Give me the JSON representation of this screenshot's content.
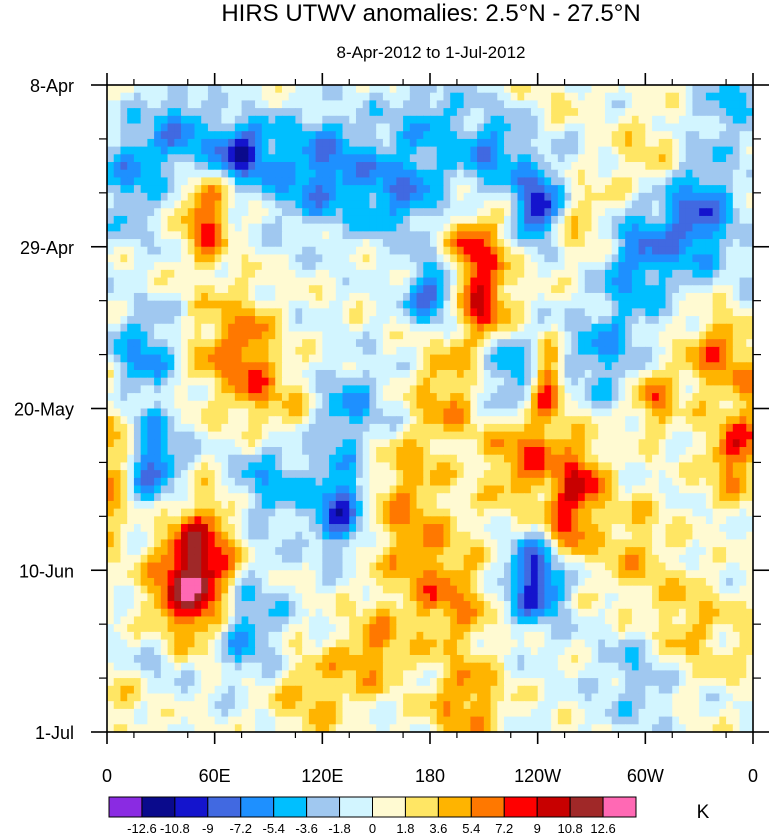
{
  "chart_data": {
    "type": "heatmap",
    "title": "HIRS UTWV anomalies: 2.5°N - 27.5°N",
    "subtitle": "8-Apr-2012 to 1-Jul-2012",
    "x_ticks": [
      "0",
      "60E",
      "120E",
      "180",
      "120W",
      "60W",
      "0"
    ],
    "x_range_deg": [
      0,
      360
    ],
    "y_ticks": [
      "8-Apr",
      "29-Apr",
      "20-May",
      "10-Jun",
      "1-Jul"
    ],
    "y_range_days": [
      0,
      84
    ],
    "colorbar": {
      "unit": "K",
      "levels": [
        "-12.6",
        "-10.8",
        "-9",
        "-7.2",
        "-5.4",
        "-3.6",
        "-1.8",
        "0",
        "1.8",
        "3.6",
        "5.4",
        "7.2",
        "9",
        "10.8",
        "12.6"
      ],
      "colors": [
        "#8a2be2",
        "#0a0a8c",
        "#1414cd",
        "#4169e1",
        "#1e90ff",
        "#00bfff",
        "#a0c8f0",
        "#d2f5ff",
        "#fffad2",
        "#ffe664",
        "#ffb400",
        "#ff7800",
        "#ff0000",
        "#c80000",
        "#a02828",
        "#ff69b4"
      ]
    },
    "features": [
      {
        "lon": 70,
        "day": 9,
        "value": -12,
        "wlon": 14,
        "wday": 3
      },
      {
        "lon": 40,
        "day": 6,
        "value": -6,
        "wlon": 12,
        "wday": 4
      },
      {
        "lon": 15,
        "day": 12,
        "value": -5,
        "wlon": 10,
        "wday": 5
      },
      {
        "lon": 120,
        "day": 11,
        "value": -7,
        "wlon": 22,
        "wday": 5
      },
      {
        "lon": 165,
        "day": 14,
        "value": -6,
        "wlon": 16,
        "wday": 4
      },
      {
        "lon": 180,
        "day": 4,
        "value": -4,
        "wlon": 14,
        "wday": 4
      },
      {
        "lon": 215,
        "day": 9,
        "value": -6,
        "wlon": 14,
        "wday": 4
      },
      {
        "lon": 240,
        "day": 16,
        "value": -11,
        "wlon": 8,
        "wday": 3
      },
      {
        "lon": 250,
        "day": 7,
        "value": -5,
        "wlon": 12,
        "wday": 4
      },
      {
        "lon": 295,
        "day": 21,
        "value": -7,
        "wlon": 16,
        "wday": 6
      },
      {
        "lon": 330,
        "day": 17,
        "value": -8,
        "wlon": 14,
        "wday": 5
      },
      {
        "lon": 345,
        "day": 3,
        "value": -4,
        "wlon": 12,
        "wday": 3
      },
      {
        "lon": 20,
        "day": 35,
        "value": -6,
        "wlon": 12,
        "wday": 4
      },
      {
        "lon": 135,
        "day": 42,
        "value": -5,
        "wlon": 16,
        "wday": 4
      },
      {
        "lon": 182,
        "day": 27,
        "value": -9,
        "wlon": 10,
        "wday": 3
      },
      {
        "lon": 225,
        "day": 38,
        "value": -6,
        "wlon": 12,
        "wday": 4
      },
      {
        "lon": 275,
        "day": 35,
        "value": -5,
        "wlon": 14,
        "wday": 4
      },
      {
        "lon": 25,
        "day": 49,
        "value": -8,
        "wlon": 12,
        "wday": 4
      },
      {
        "lon": 130,
        "day": 55,
        "value": -9,
        "wlon": 10,
        "wday": 4
      },
      {
        "lon": 90,
        "day": 51,
        "value": -5,
        "wlon": 16,
        "wday": 5
      },
      {
        "lon": 240,
        "day": 64,
        "value": -11,
        "wlon": 12,
        "wday": 4
      },
      {
        "lon": 260,
        "day": 56,
        "value": -5,
        "wlon": 14,
        "wday": 5
      },
      {
        "lon": 75,
        "day": 70,
        "value": -6,
        "wlon": 14,
        "wday": 5
      },
      {
        "lon": 30,
        "day": 75,
        "value": -4,
        "wlon": 14,
        "wday": 4
      },
      {
        "lon": 300,
        "day": 76,
        "value": -4,
        "wlon": 18,
        "wday": 5
      },
      {
        "lon": 155,
        "day": 70,
        "value": -4,
        "wlon": 18,
        "wday": 4
      },
      {
        "lon": 60,
        "day": 11,
        "value": 5,
        "wlon": 12,
        "wday": 4
      },
      {
        "lon": 55,
        "day": 18,
        "value": 7,
        "wlon": 8,
        "wday": 4
      },
      {
        "lon": 205,
        "day": 22,
        "value": 8,
        "wlon": 12,
        "wday": 4
      },
      {
        "lon": 210,
        "day": 29,
        "value": 7,
        "wlon": 12,
        "wday": 3
      },
      {
        "lon": 250,
        "day": 5,
        "value": 5,
        "wlon": 12,
        "wday": 4
      },
      {
        "lon": 300,
        "day": 11,
        "value": 4,
        "wlon": 14,
        "wday": 5
      },
      {
        "lon": 270,
        "day": 18,
        "value": 4,
        "wlon": 14,
        "wday": 4
      },
      {
        "lon": 80,
        "day": 36,
        "value": 6,
        "wlon": 10,
        "wday": 6
      },
      {
        "lon": 60,
        "day": 34,
        "value": 4,
        "wlon": 12,
        "wday": 5
      },
      {
        "lon": 235,
        "day": 48,
        "value": 7,
        "wlon": 16,
        "wday": 5
      },
      {
        "lon": 265,
        "day": 52,
        "value": 9,
        "wlon": 10,
        "wday": 4
      },
      {
        "lon": 255,
        "day": 58,
        "value": 10,
        "wlon": 10,
        "wday": 4
      },
      {
        "lon": 245,
        "day": 38,
        "value": 8,
        "wlon": 6,
        "wday": 3
      },
      {
        "lon": 190,
        "day": 40,
        "value": 5,
        "wlon": 14,
        "wday": 5
      },
      {
        "lon": 340,
        "day": 35,
        "value": 6,
        "wlon": 14,
        "wday": 4
      },
      {
        "lon": 350,
        "day": 48,
        "value": 7,
        "wlon": 12,
        "wday": 4
      },
      {
        "lon": 305,
        "day": 41,
        "value": 6,
        "wlon": 8,
        "wday": 3
      },
      {
        "lon": 5,
        "day": 48,
        "value": 5,
        "wlon": 8,
        "wday": 4
      },
      {
        "lon": 45,
        "day": 66,
        "value": 9,
        "wlon": 16,
        "wday": 6
      },
      {
        "lon": 55,
        "day": 61,
        "value": 6,
        "wlon": 14,
        "wday": 6
      },
      {
        "lon": 150,
        "day": 72,
        "value": 8,
        "wlon": 14,
        "wday": 4
      },
      {
        "lon": 190,
        "day": 68,
        "value": 5,
        "wlon": 18,
        "wday": 4
      },
      {
        "lon": 175,
        "day": 61,
        "value": 4,
        "wlon": 20,
        "wday": 5
      },
      {
        "lon": 200,
        "day": 80,
        "value": 6,
        "wlon": 14,
        "wday": 4
      },
      {
        "lon": 320,
        "day": 71,
        "value": 5,
        "wlon": 16,
        "wday": 5
      },
      {
        "lon": 290,
        "day": 60,
        "value": 4,
        "wlon": 16,
        "wday": 5
      },
      {
        "lon": 100,
        "day": 42,
        "value": 4,
        "wlon": 12,
        "wday": 4
      },
      {
        "lon": 165,
        "day": 52,
        "value": 4,
        "wlon": 14,
        "wday": 5
      },
      {
        "lon": 115,
        "day": 79,
        "value": 4,
        "wlon": 18,
        "wday": 4
      },
      {
        "lon": 10,
        "day": 80,
        "value": 3,
        "wlon": 16,
        "wday": 4
      }
    ]
  }
}
